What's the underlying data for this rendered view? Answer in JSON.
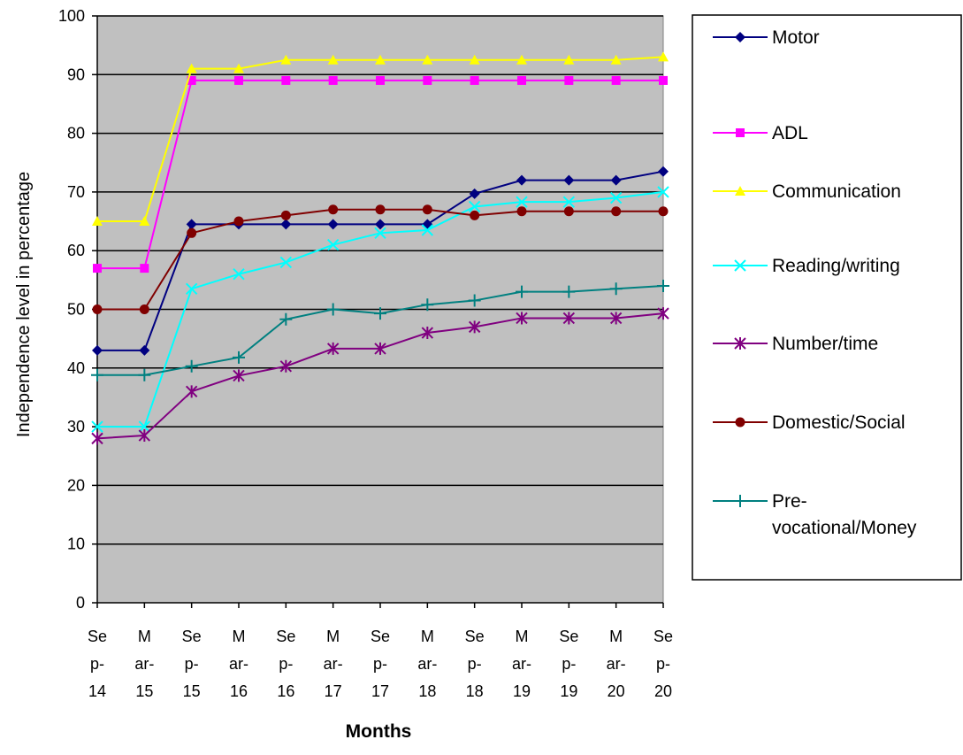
{
  "chart_data": {
    "type": "line",
    "title": "",
    "xlabel": "Months",
    "ylabel": "Independence level in percentage",
    "ylim": [
      0,
      100
    ],
    "yticks": [
      0,
      10,
      20,
      30,
      40,
      50,
      60,
      70,
      80,
      90,
      100
    ],
    "grid": true,
    "legend_position": "right",
    "plot_background": "#C0C0C0",
    "categories": [
      "Sep-14",
      "Mar-15",
      "Sep-15",
      "Mar-16",
      "Sep-16",
      "Mar-17",
      "Sep-17",
      "Mar-18",
      "Sep-18",
      "Mar-19",
      "Sep-19",
      "Mar-20",
      "Sep-20"
    ],
    "category_label_lines": [
      [
        "Se",
        "p-",
        "14"
      ],
      [
        "M",
        "ar-",
        "15"
      ],
      [
        "Se",
        "p-",
        "15"
      ],
      [
        "M",
        "ar-",
        "16"
      ],
      [
        "Se",
        "p-",
        "16"
      ],
      [
        "M",
        "ar-",
        "17"
      ],
      [
        "Se",
        "p-",
        "17"
      ],
      [
        "M",
        "ar-",
        "18"
      ],
      [
        "Se",
        "p-",
        "18"
      ],
      [
        "M",
        "ar-",
        "19"
      ],
      [
        "Se",
        "p-",
        "19"
      ],
      [
        "M",
        "ar-",
        "20"
      ],
      [
        "Se",
        "p-",
        "20"
      ]
    ],
    "series": [
      {
        "name": "Motor",
        "legend_lines": [
          "Motor"
        ],
        "color": "#000080",
        "marker": "diamond",
        "values": [
          43,
          43,
          64.5,
          64.5,
          64.5,
          64.5,
          64.5,
          64.5,
          69.7,
          72,
          72,
          72,
          73.5
        ]
      },
      {
        "name": "ADL",
        "legend_lines": [
          "ADL"
        ],
        "color": "#FF00FF",
        "marker": "square",
        "values": [
          57,
          57,
          89,
          89,
          89,
          89,
          89,
          89,
          89,
          89,
          89,
          89,
          89
        ]
      },
      {
        "name": "Communication",
        "legend_lines": [
          "Communication"
        ],
        "color": "#FFFF00",
        "marker": "triangle",
        "values": [
          65,
          65,
          91,
          91,
          92.5,
          92.5,
          92.5,
          92.5,
          92.5,
          92.5,
          92.5,
          92.5,
          93
        ]
      },
      {
        "name": "Reading/writing",
        "legend_lines": [
          "Reading/writing"
        ],
        "color": "#00FFFF",
        "marker": "x",
        "values": [
          30,
          30,
          53.5,
          56,
          58,
          61,
          63,
          63.5,
          67.5,
          68.3,
          68.3,
          69,
          70
        ]
      },
      {
        "name": "Number/time",
        "legend_lines": [
          "Number/time"
        ],
        "color": "#800080",
        "marker": "asterisk",
        "values": [
          28,
          28.5,
          36,
          38.7,
          40.3,
          43.3,
          43.3,
          46,
          47,
          48.5,
          48.5,
          48.5,
          49.3
        ]
      },
      {
        "name": "Domestic/Social",
        "legend_lines": [
          "Domestic/Social"
        ],
        "color": "#800000",
        "marker": "circle",
        "values": [
          50,
          50,
          63,
          65,
          66,
          67,
          67,
          67,
          66,
          66.7,
          66.7,
          66.7,
          66.7
        ]
      },
      {
        "name": "Pre-vocational/Money",
        "legend_lines": [
          "Pre-",
          "vocational/Money"
        ],
        "color": "#008080",
        "marker": "plus",
        "values": [
          38.8,
          38.8,
          40.3,
          41.8,
          48.3,
          50,
          49.3,
          50.8,
          51.5,
          53,
          53,
          53.5,
          54
        ]
      }
    ]
  }
}
